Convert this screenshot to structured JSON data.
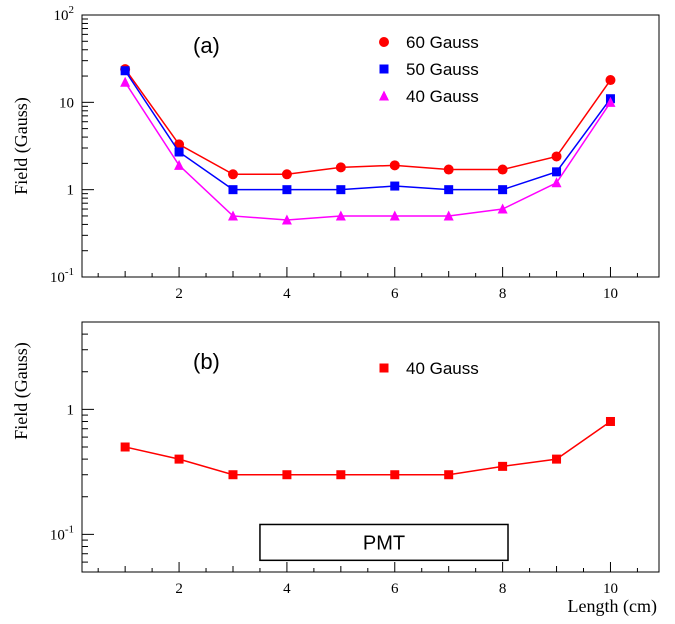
{
  "chart_data": [
    {
      "type": "line",
      "panel_label": "(a)",
      "ylabel": "Field (Gauss)",
      "xlabel": "",
      "xlim": [
        0.2,
        10.9
      ],
      "ylim": [
        0.1,
        100
      ],
      "yscale": "log",
      "legend_placement": "top-right",
      "x_tick_labels": [
        "2",
        "4",
        "6",
        "8",
        "10"
      ],
      "y_tick_labels": [
        {
          "value": 0.1,
          "base": "10",
          "exp": "-1"
        },
        {
          "value": 1,
          "text": "1"
        },
        {
          "value": 10,
          "text": "10"
        },
        {
          "value": 100,
          "base": "10",
          "exp": "2"
        }
      ],
      "x": [
        1,
        2,
        3,
        4,
        5,
        6,
        7,
        8,
        9,
        10
      ],
      "series": [
        {
          "name": "60 Gauss",
          "color": "#ff0000",
          "marker": "circle",
          "values": [
            24,
            3.3,
            1.5,
            1.5,
            1.8,
            1.9,
            1.7,
            1.7,
            2.4,
            18
          ]
        },
        {
          "name": "50 Gauss",
          "color": "#0000ff",
          "marker": "square",
          "values": [
            23,
            2.7,
            1.0,
            1.0,
            1.0,
            1.1,
            1.0,
            1.0,
            1.6,
            11
          ]
        },
        {
          "name": "40 Gauss",
          "color": "#ff00ff",
          "marker": "triangle",
          "values": [
            17,
            1.9,
            0.5,
            0.45,
            0.5,
            0.5,
            0.5,
            0.6,
            1.2,
            10
          ]
        }
      ]
    },
    {
      "type": "line",
      "panel_label": "(b)",
      "ylabel": "Field (Gauss)",
      "xlabel": "Length (cm)",
      "xlim": [
        0.2,
        10.9
      ],
      "ylim": [
        0.05,
        5
      ],
      "yscale": "log",
      "legend_placement": "top-right",
      "x_tick_labels": [
        "2",
        "4",
        "6",
        "8",
        "10"
      ],
      "y_tick_labels": [
        {
          "value": 0.1,
          "base": "10",
          "exp": "-1"
        },
        {
          "value": 1,
          "text": "1"
        }
      ],
      "x": [
        1,
        2,
        3,
        4,
        5,
        6,
        7,
        8,
        9,
        10
      ],
      "series": [
        {
          "name": "40 Gauss",
          "color": "#ff0000",
          "marker": "square",
          "values": [
            0.5,
            0.4,
            0.3,
            0.3,
            0.3,
            0.3,
            0.3,
            0.35,
            0.4,
            0.8
          ]
        }
      ],
      "annotation": {
        "text": "PMT",
        "x_from": 3.5,
        "x_to": 8.1,
        "y_from": 0.062,
        "y_to": 0.12
      }
    }
  ]
}
